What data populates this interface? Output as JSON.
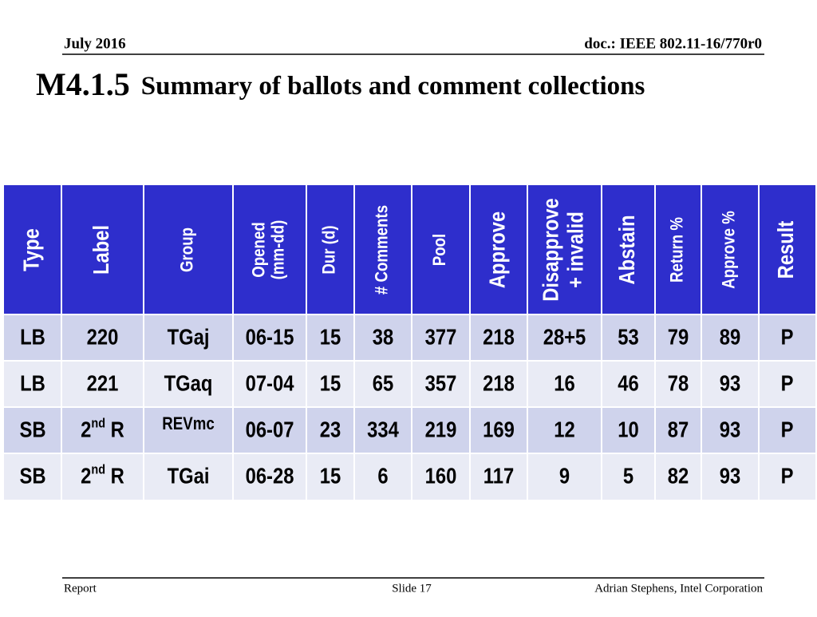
{
  "header": {
    "date": "July 2016",
    "doc": "doc.: IEEE 802.11-16/770r0"
  },
  "title": {
    "number": "M4.1.5",
    "text": "Summary of ballots and comment collections"
  },
  "table": {
    "columns": [
      [
        "Type"
      ],
      [
        "Label"
      ],
      [
        "Group"
      ],
      [
        "Opened",
        "(mm-dd)"
      ],
      [
        "Dur (d)"
      ],
      [
        "# Comments"
      ],
      [
        "Pool"
      ],
      [
        "Approve"
      ],
      [
        "Disapprove",
        "+ invalid"
      ],
      [
        "Abstain"
      ],
      [
        "Return %"
      ],
      [
        "Approve %"
      ],
      [
        "Result"
      ]
    ],
    "rows": [
      [
        "LB",
        "220",
        "TGaj",
        "06-15",
        "15",
        "38",
        "377",
        "218",
        "28+5",
        "53",
        "79",
        "89",
        "P"
      ],
      [
        "LB",
        "221",
        "TGaq",
        "07-04",
        "15",
        "65",
        "357",
        "218",
        "16",
        "46",
        "78",
        "93",
        "P"
      ],
      [
        "SB",
        {
          "base": "2",
          "sup": "nd",
          "after": " R"
        },
        "REVmc",
        "06-07",
        "23",
        "334",
        "219",
        "169",
        "12",
        "10",
        "87",
        "93",
        "P"
      ],
      [
        "SB",
        {
          "base": "2",
          "sup": "nd",
          "after": " R"
        },
        "TGai",
        "06-28",
        "15",
        "6",
        "160",
        "117",
        "9",
        "5",
        "82",
        "93",
        "P"
      ]
    ]
  },
  "footer": {
    "left": "Report",
    "center": "Slide 17",
    "right": "Adrian Stephens, Intel Corporation"
  }
}
